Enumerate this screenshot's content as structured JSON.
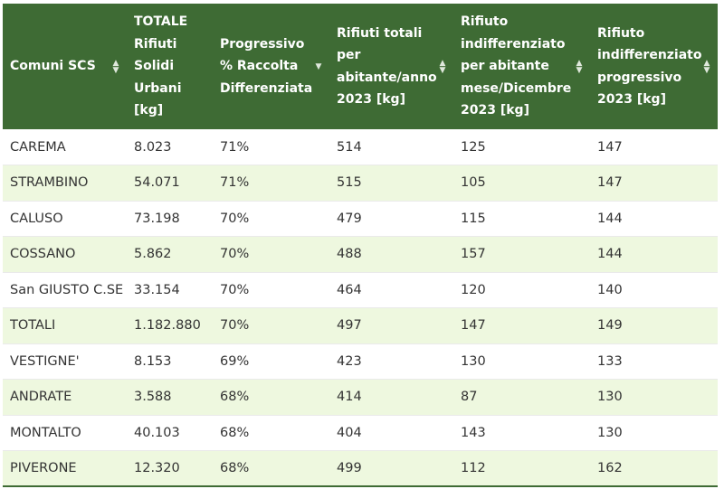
{
  "table": {
    "headers": [
      {
        "label": "Comuni SCS",
        "sort": "both"
      },
      {
        "label": "TOTALE Rifiuti Solidi Urbani [kg]",
        "sort": "none"
      },
      {
        "label": "Progressivo % Raccolta Differenziata",
        "sort": "down"
      },
      {
        "label": "Rifiuti totali per abitante/anno 2023 [kg]",
        "sort": "both"
      },
      {
        "label": "Rifiuto indifferenziato per abitante mese/Dicembre 2023 [kg]",
        "sort": "both"
      },
      {
        "label": "Rifiuto indifferenziato progressivo 2023 [kg]",
        "sort": "both"
      }
    ],
    "rows": [
      [
        "CAREMA",
        "8.023",
        "71%",
        "514",
        "125",
        "147"
      ],
      [
        "STRAMBINO",
        "54.071",
        "71%",
        "515",
        "105",
        "147"
      ],
      [
        "CALUSO",
        "73.198",
        "70%",
        "479",
        "115",
        "144"
      ],
      [
        "COSSANO",
        "5.862",
        "70%",
        "488",
        "157",
        "144"
      ],
      [
        "San GIUSTO C.SE",
        "33.154",
        "70%",
        "464",
        "120",
        "140"
      ],
      [
        "TOTALI",
        "1.182.880",
        "70%",
        "497",
        "147",
        "149"
      ],
      [
        "VESTIGNE'",
        "8.153",
        "69%",
        "423",
        "130",
        "133"
      ],
      [
        "ANDRATE",
        "3.588",
        "68%",
        "414",
        "87",
        "130"
      ],
      [
        "MONTALTO",
        "40.103",
        "68%",
        "404",
        "143",
        "130"
      ],
      [
        "PIVERONE",
        "12.320",
        "68%",
        "499",
        "112",
        "162"
      ]
    ],
    "colors": {
      "header_bg": "#3e6b34",
      "stripe_bg": "#eef8df",
      "text": "#333333"
    }
  }
}
